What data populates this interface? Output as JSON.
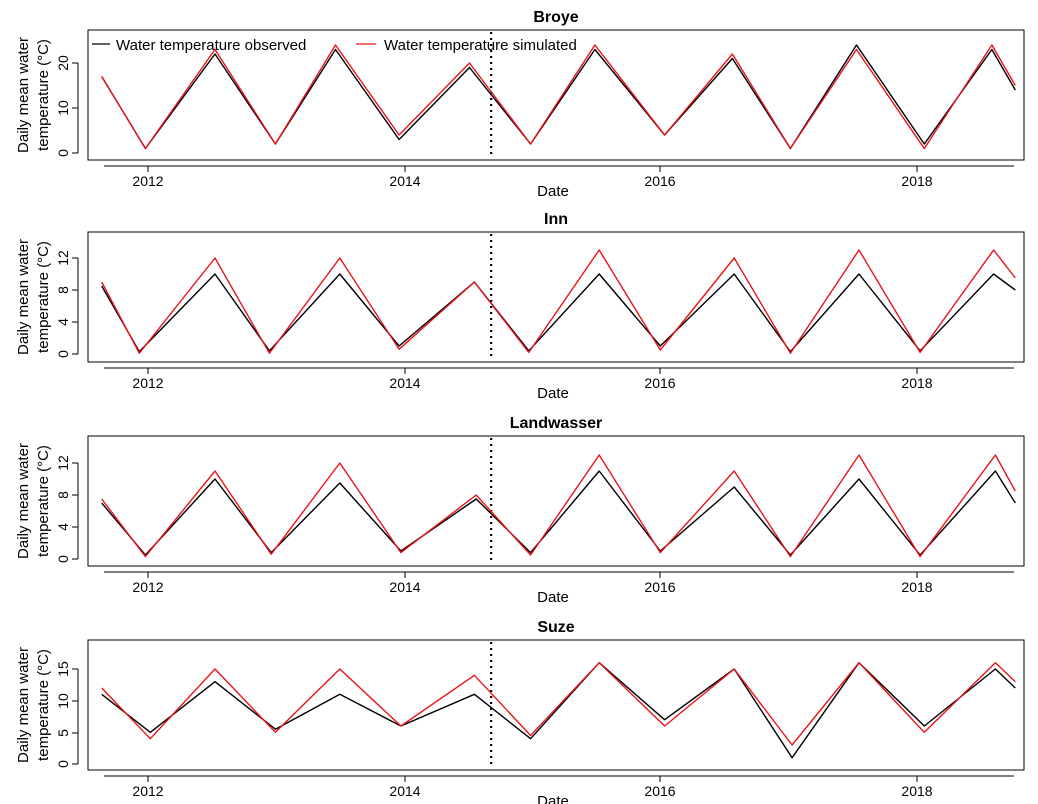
{
  "legend": {
    "observed": "Water temperature observed",
    "simulated": "Water temperature simulated"
  },
  "colors": {
    "observed": "#000000",
    "simulated": "#e8141a"
  },
  "chart_data": [
    {
      "type": "line",
      "title": "Broye",
      "xlabel": "Date",
      "ylabel": "Daily mean water temperature (°C)",
      "ylabel_lines": [
        "Daily mean water",
        "temperature (°C)"
      ],
      "xlim": [
        "2011-09-01",
        "2018-10-31"
      ],
      "ylim": [
        0,
        25
      ],
      "xticks": [
        "2012",
        "2014",
        "2016",
        "2018"
      ],
      "yticks": [
        "0",
        "10",
        "20"
      ],
      "calibration_split": "2014-10-01",
      "legend_placement": "top-left",
      "series": [
        {
          "name": "Water temperature observed",
          "x": [
            "2011-10-01",
            "2012-02-01",
            "2012-08-15",
            "2013-02-01",
            "2013-07-20",
            "2014-01-15",
            "2014-08-01",
            "2015-01-20",
            "2015-07-20",
            "2016-02-01",
            "2016-08-10",
            "2017-01-20",
            "2017-07-25",
            "2018-02-01",
            "2018-08-10",
            "2018-10-15"
          ],
          "y": [
            17,
            1,
            22,
            2,
            23,
            3,
            19,
            2,
            23,
            4,
            21,
            1,
            24,
            2,
            23,
            14
          ]
        },
        {
          "name": "Water temperature simulated",
          "x": [
            "2011-10-01",
            "2012-02-01",
            "2012-08-15",
            "2013-02-01",
            "2013-07-20",
            "2014-01-15",
            "2014-08-01",
            "2015-01-20",
            "2015-07-20",
            "2016-02-01",
            "2016-08-10",
            "2017-01-20",
            "2017-07-25",
            "2018-02-01",
            "2018-08-10",
            "2018-10-15"
          ],
          "y": [
            17,
            1,
            23,
            2,
            24,
            4,
            20,
            2,
            24,
            4,
            22,
            1,
            23,
            1,
            24,
            15
          ]
        }
      ]
    },
    {
      "type": "line",
      "title": "Inn",
      "xlabel": "Date",
      "ylabel": "Daily mean water temperature (°C)",
      "ylabel_lines": [
        "Daily mean water",
        "temperature (°C)"
      ],
      "xlim": [
        "2011-09-01",
        "2018-10-31"
      ],
      "ylim": [
        0,
        14
      ],
      "xticks": [
        "2012",
        "2014",
        "2016",
        "2018"
      ],
      "yticks": [
        "0",
        "4",
        "8",
        "12"
      ],
      "calibration_split": "2014-10-01",
      "series": [
        {
          "name": "Water temperature observed",
          "x": [
            "2011-10-01",
            "2012-01-15",
            "2012-08-15",
            "2013-01-15",
            "2013-08-01",
            "2014-01-15",
            "2014-08-15",
            "2015-01-15",
            "2015-08-01",
            "2016-01-20",
            "2016-08-15",
            "2017-01-20",
            "2017-08-01",
            "2018-01-20",
            "2018-08-15",
            "2018-10-15"
          ],
          "y": [
            8.5,
            0.3,
            10,
            0.4,
            10,
            1,
            9,
            0.4,
            10,
            1,
            10,
            0.3,
            10,
            0.4,
            10,
            8
          ]
        },
        {
          "name": "Water temperature simulated",
          "x": [
            "2011-10-01",
            "2012-01-15",
            "2012-08-15",
            "2013-01-15",
            "2013-08-01",
            "2014-01-15",
            "2014-08-15",
            "2015-01-15",
            "2015-08-01",
            "2016-01-20",
            "2016-08-15",
            "2017-01-20",
            "2017-08-01",
            "2018-01-20",
            "2018-08-15",
            "2018-10-15"
          ],
          "y": [
            9,
            0.1,
            12,
            0.1,
            12,
            0.6,
            9,
            0.2,
            13,
            0.5,
            12,
            0.1,
            13,
            0.2,
            13,
            9.5
          ]
        }
      ]
    },
    {
      "type": "line",
      "title": "Landwasser",
      "xlabel": "Date",
      "ylabel": "Daily mean water temperature (°C)",
      "ylabel_lines": [
        "Daily mean water",
        "temperature (°C)"
      ],
      "xlim": [
        "2011-09-01",
        "2018-10-31"
      ],
      "ylim": [
        0,
        14
      ],
      "xticks": [
        "2012",
        "2014",
        "2016",
        "2018"
      ],
      "yticks": [
        "0",
        "4",
        "8",
        "12"
      ],
      "calibration_split": "2014-10-01",
      "series": [
        {
          "name": "Water temperature observed",
          "x": [
            "2011-10-01",
            "2012-02-01",
            "2012-08-15",
            "2013-01-20",
            "2013-08-01",
            "2014-01-20",
            "2014-08-20",
            "2015-01-20",
            "2015-08-01",
            "2016-01-20",
            "2016-08-15",
            "2017-01-20",
            "2017-08-01",
            "2018-01-20",
            "2018-08-20",
            "2018-10-15"
          ],
          "y": [
            7,
            0.5,
            10,
            0.8,
            9.5,
            1,
            7.5,
            0.8,
            11,
            1,
            9,
            0.5,
            10,
            0.5,
            11,
            7
          ]
        },
        {
          "name": "Water temperature simulated",
          "x": [
            "2011-10-01",
            "2012-02-01",
            "2012-08-15",
            "2013-01-20",
            "2013-08-01",
            "2014-01-20",
            "2014-08-20",
            "2015-01-20",
            "2015-08-01",
            "2016-01-20",
            "2016-08-15",
            "2017-01-20",
            "2017-08-01",
            "2018-01-20",
            "2018-08-20",
            "2018-10-15"
          ],
          "y": [
            7.5,
            0.3,
            11,
            0.6,
            12,
            0.8,
            8,
            0.5,
            13,
            0.8,
            11,
            0.3,
            13,
            0.3,
            13,
            8.5
          ]
        }
      ]
    },
    {
      "type": "line",
      "title": "Suze",
      "xlabel": "Date",
      "ylabel": "Daily mean water temperature (°C)",
      "ylabel_lines": [
        "Daily mean water",
        "temperature (°C)"
      ],
      "xlim": [
        "2011-09-01",
        "2018-10-31"
      ],
      "ylim": [
        0,
        17
      ],
      "xticks": [
        "2012",
        "2014",
        "2016",
        "2018"
      ],
      "yticks": [
        "0",
        "5",
        "10",
        "15"
      ],
      "calibration_split": "2014-10-01",
      "series": [
        {
          "name": "Water temperature observed",
          "x": [
            "2011-10-01",
            "2012-02-15",
            "2012-08-15",
            "2013-02-01",
            "2013-08-01",
            "2014-01-20",
            "2014-08-15",
            "2015-01-20",
            "2015-08-01",
            "2016-02-01",
            "2016-08-15",
            "2017-01-25",
            "2017-08-01",
            "2018-02-01",
            "2018-08-20",
            "2018-10-15"
          ],
          "y": [
            11,
            5,
            13,
            5.5,
            11,
            6,
            11,
            4,
            16,
            7,
            15,
            1,
            16,
            6,
            15,
            12
          ]
        },
        {
          "name": "Water temperature simulated",
          "x": [
            "2011-10-01",
            "2012-02-15",
            "2012-08-15",
            "2013-02-01",
            "2013-08-01",
            "2014-01-20",
            "2014-08-15",
            "2015-01-20",
            "2015-08-01",
            "2016-02-01",
            "2016-08-15",
            "2017-01-25",
            "2017-08-01",
            "2018-02-01",
            "2018-08-20",
            "2018-10-15"
          ],
          "y": [
            12,
            4,
            15,
            5,
            15,
            6,
            14,
            4.5,
            16,
            6,
            15,
            3,
            16,
            5,
            16,
            13
          ]
        }
      ]
    }
  ]
}
